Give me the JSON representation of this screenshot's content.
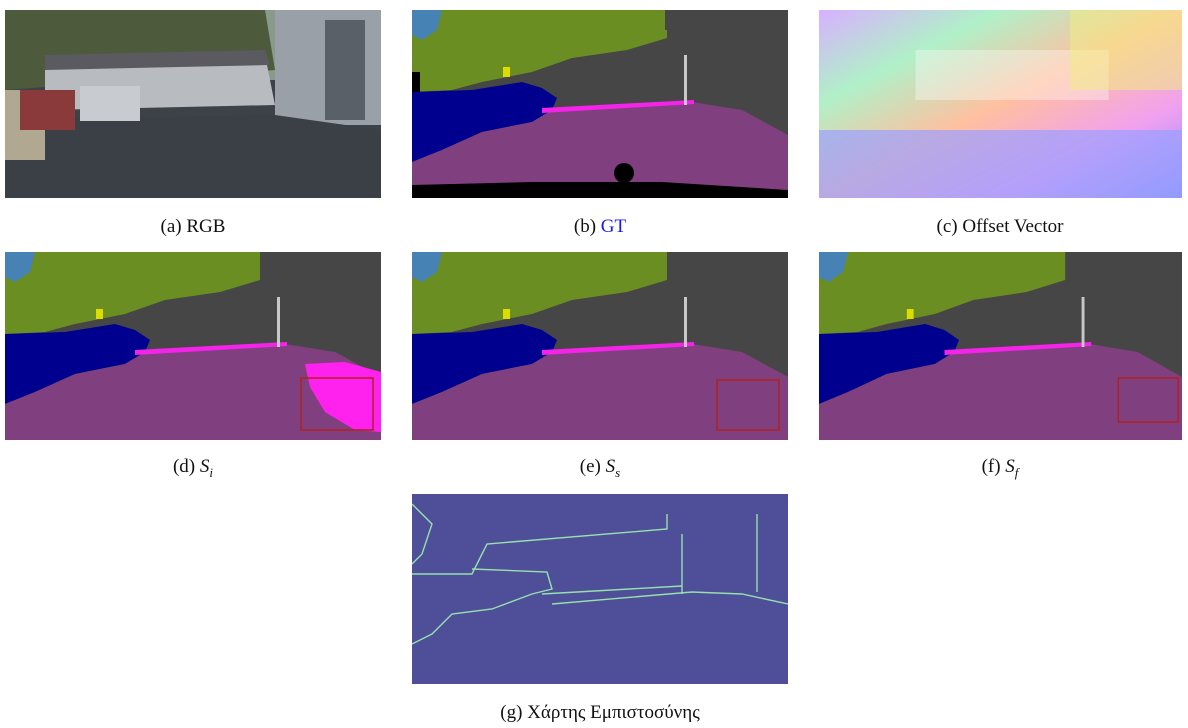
{
  "panels": [
    {
      "label": "(a)",
      "caption": "RGB"
    },
    {
      "label": "(b)",
      "caption": "GT"
    },
    {
      "label": "(c)",
      "caption": "Offset Vector"
    },
    {
      "label": "(d)",
      "caption": "S",
      "subscript": "i"
    },
    {
      "label": "(e)",
      "caption": "S",
      "subscript": "s"
    },
    {
      "label": "(f)",
      "caption": "S",
      "subscript": "f"
    },
    {
      "label": "(g)",
      "caption": "Χάρτης Εμπιστοσύνης"
    }
  ]
}
